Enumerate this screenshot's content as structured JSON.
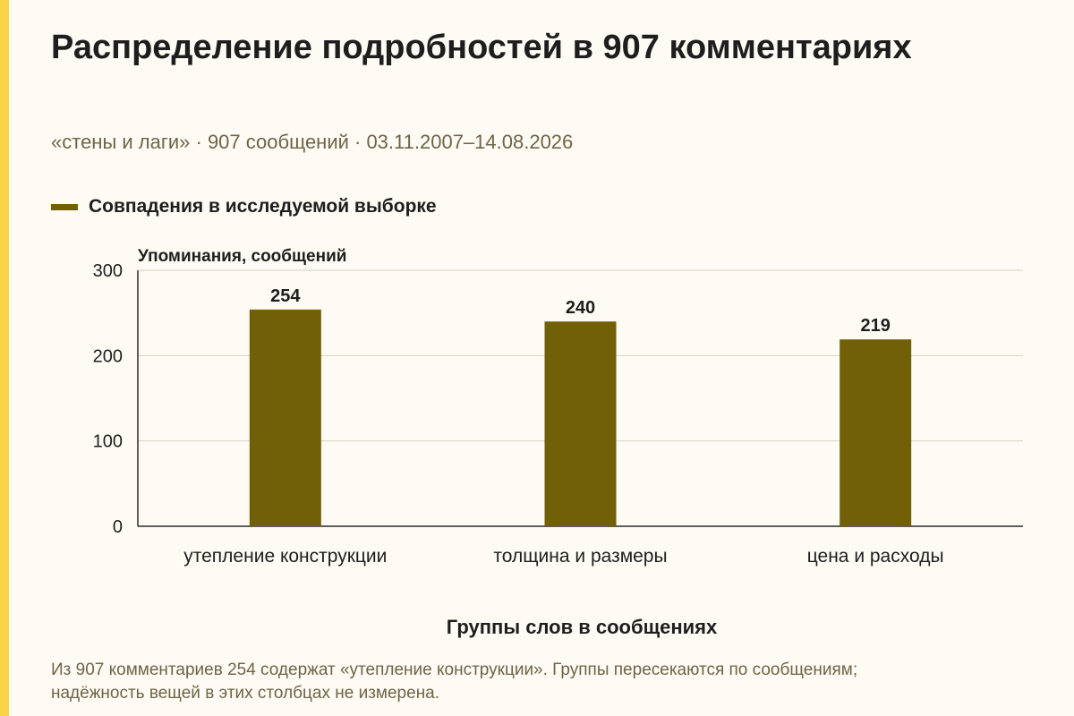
{
  "title": "Распределение подробностей в 907 комментариях",
  "subtitle": "«стены и лаги» · 907 сообщений · 03.11.2007–14.08.2026",
  "legend": {
    "label": "Совпадения в исследуемой выборке"
  },
  "footnote": "Из 907 комментариев 254 содержат «утепление конструкции». Группы пересекаются по сообщениям; надёжность вещей в этих столбцах не измерена.",
  "colors": {
    "accent_strip": "#f7d448",
    "bar": "#726009",
    "background": "#fdfbf3",
    "muted_text": "#6e6447"
  },
  "chart_data": {
    "type": "bar",
    "categories": [
      "утепление конструкции",
      "толщина и размеры",
      "цена и расходы"
    ],
    "series": [
      {
        "name": "Совпадения в исследуемой выборке",
        "values": [
          254,
          240,
          219
        ]
      }
    ],
    "data_labels": [
      "254",
      "240",
      "219"
    ],
    "xlabel": "Группы слов в сообщениях",
    "ylabel": "Упоминания, сообщений",
    "ylim": [
      0,
      300
    ],
    "yticks": [
      0,
      100,
      200,
      300
    ],
    "ytick_labels": [
      "0",
      "100",
      "200",
      "300"
    ],
    "grid": true,
    "legend_position": "top-left"
  }
}
